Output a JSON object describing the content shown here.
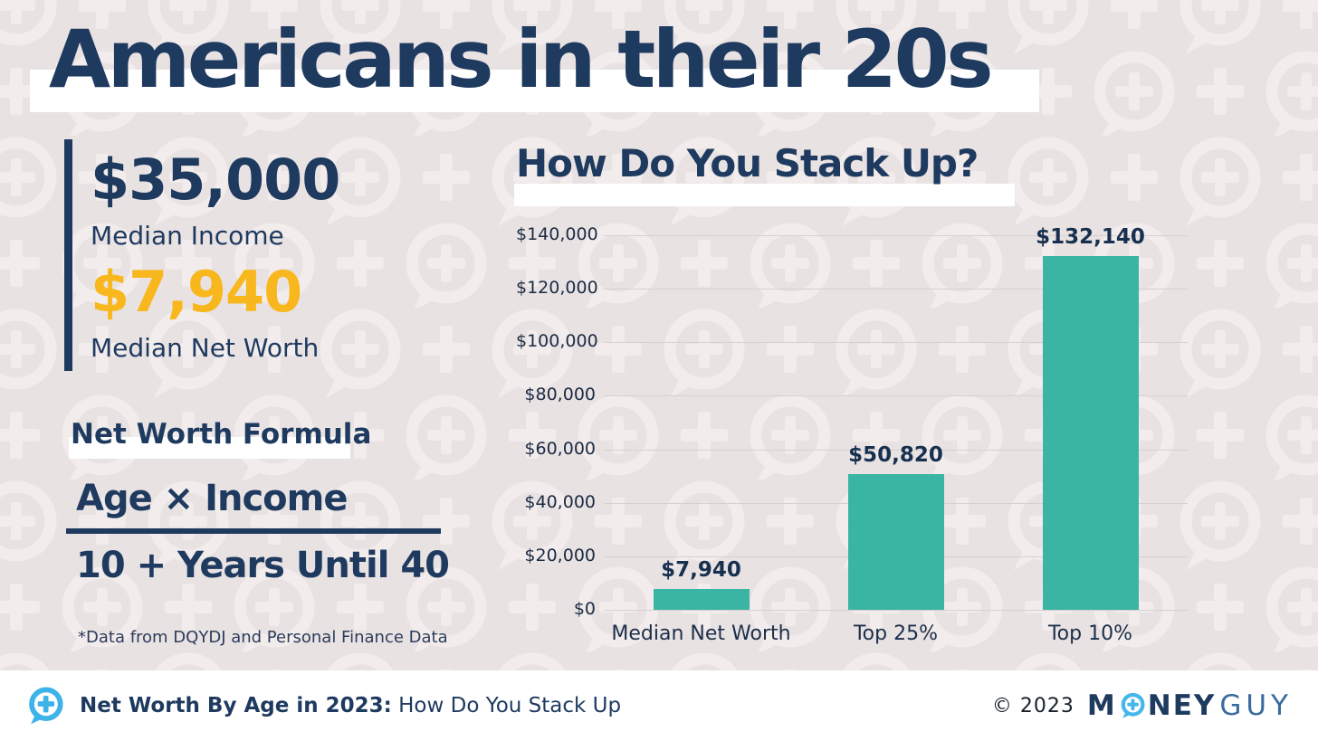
{
  "page": {
    "title": "Americans in their 20s"
  },
  "stats": {
    "income_value": "$35,000",
    "income_label": "Median Income",
    "networth_value": "$7,940",
    "networth_label": "Median Net Worth",
    "networth_color": "#f8b71c"
  },
  "formula": {
    "heading": "Net Worth Formula",
    "numerator": "Age × Income",
    "denominator": "10 + Years Until 40"
  },
  "footnote": "*Data from DQYDJ and Personal Finance Data",
  "chart_data": {
    "type": "bar",
    "title": "How Do You Stack Up?",
    "categories": [
      "Median Net Worth",
      "Top 25%",
      "Top 10%"
    ],
    "values": [
      7940,
      50820,
      132140
    ],
    "value_labels": [
      "$7,940",
      "$50,820",
      "$132,140"
    ],
    "ytick_labels": [
      "$0",
      "$20,000",
      "$40,000",
      "$60,000",
      "$80,000",
      "$100,000",
      "$120,000",
      "$140,000"
    ],
    "ylim": [
      0,
      140000
    ],
    "grid": true,
    "legend": "none",
    "bar_color": "#3ab4a3"
  },
  "footer": {
    "logo_icon": "speech-bubble-plus-icon",
    "title_bold": "Net Worth By Age in 2023:",
    "title_regular": " How Do You Stack Up",
    "copyright": "© 2023",
    "brand_m": "M",
    "brand_ney": "NEY",
    "brand_guy": "GUY"
  },
  "colors": {
    "navy": "#1e3a5f",
    "gold": "#f8b71c",
    "teal": "#3ab4a3",
    "background": "#e9e2e3",
    "pattern": "#f2ecec",
    "gridline": "#d6d0d1",
    "logo_blue": "#3eb3e9"
  }
}
